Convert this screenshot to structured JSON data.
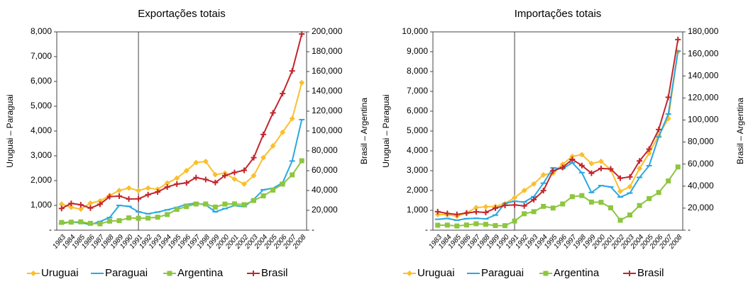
{
  "chart_data": [
    {
      "type": "line",
      "title": "Exportações totais",
      "y_label": "Uruguai – Paraguai",
      "y2_label": "Brasil – Argentina",
      "categories": [
        "1983",
        "1984",
        "1985",
        "1986",
        "1987",
        "1988",
        "1989",
        "1990",
        "1991",
        "1992",
        "1993",
        "1994",
        "1995",
        "1996",
        "1997",
        "1998",
        "1999",
        "2000",
        "2001",
        "2002",
        "2003",
        "2004",
        "2005",
        "2006",
        "2007",
        "2008"
      ],
      "vline_category": "1991",
      "ylim": [
        0,
        8000
      ],
      "yticks": [
        {
          "value": 0,
          "label": "-"
        },
        {
          "value": 1000,
          "label": "1,000"
        },
        {
          "value": 2000,
          "label": "2,000"
        },
        {
          "value": 3000,
          "label": "3,000"
        },
        {
          "value": 4000,
          "label": "4,000"
        },
        {
          "value": 5000,
          "label": "5,000"
        },
        {
          "value": 6000,
          "label": "6,000"
        },
        {
          "value": 7000,
          "label": "7,000"
        },
        {
          "value": 8000,
          "label": "8,000"
        }
      ],
      "y2lim": [
        0,
        200000
      ],
      "y2ticks": [
        {
          "value": 0,
          "label": "-"
        },
        {
          "value": 20000,
          "label": "20,000"
        },
        {
          "value": 40000,
          "label": "40,000"
        },
        {
          "value": 60000,
          "label": "60,000"
        },
        {
          "value": 80000,
          "label": "80,000"
        },
        {
          "value": 100000,
          "label": "100,000"
        },
        {
          "value": 120000,
          "label": "120,000"
        },
        {
          "value": 140000,
          "label": "140,000"
        },
        {
          "value": 160000,
          "label": "160,000"
        },
        {
          "value": 180000,
          "label": "180,000"
        },
        {
          "value": 200000,
          "label": "200,000"
        }
      ],
      "series": [
        {
          "name": "Uruguai",
          "color": "#fbbf2d",
          "marker": "diamond",
          "values": [
            1050,
            925,
            850,
            1090,
            1180,
            1400,
            1600,
            1700,
            1600,
            1700,
            1650,
            1900,
            2100,
            2400,
            2730,
            2770,
            2240,
            2300,
            2060,
            1860,
            2200,
            2930,
            3400,
            3950,
            4500,
            5950
          ]
        },
        {
          "name": "Paraguai",
          "color": "#2aa8e0",
          "marker": "dash",
          "values": [
            270,
            330,
            300,
            230,
            350,
            510,
            1000,
            960,
            740,
            660,
            730,
            820,
            920,
            1040,
            1090,
            1020,
            740,
            870,
            990,
            950,
            1240,
            1630,
            1690,
            1910,
            2790,
            4460
          ]
        },
        {
          "name": "Argentina",
          "color": "#8dc63f",
          "marker": "square",
          "axis": "y2",
          "values": [
            7800,
            8100,
            8400,
            6900,
            6400,
            9100,
            9600,
            12400,
            12000,
            12200,
            13100,
            15800,
            21000,
            23800,
            26400,
            26400,
            23300,
            26300,
            26500,
            25700,
            29900,
            34600,
            40400,
            46500,
            55800,
            70000
          ]
        },
        {
          "name": "Brasil",
          "color": "#c1272d",
          "marker": "plus",
          "axis": "y2",
          "values": [
            21900,
            27000,
            25600,
            22300,
            26200,
            33800,
            34400,
            31400,
            31600,
            35800,
            38600,
            43500,
            46500,
            47700,
            53000,
            51100,
            48000,
            55100,
            58200,
            60400,
            73100,
            96500,
            118300,
            137800,
            160600,
            197900
          ]
        }
      ]
    },
    {
      "type": "line",
      "title": "Importações totais",
      "y_label": "Uruguai   – Paraguai",
      "y2_label": "Brasil   – Argentina",
      "categories": [
        "1983",
        "1984",
        "1985",
        "1986",
        "1987",
        "1988",
        "1989",
        "1990",
        "1991",
        "1992",
        "1993",
        "1994",
        "1995",
        "1996",
        "1997",
        "1998",
        "1999",
        "2000",
        "2001",
        "2002",
        "2003",
        "2004",
        "2005",
        "2006",
        "2007",
        "2008"
      ],
      "vline_category": "1991",
      "ylim": [
        0,
        10000
      ],
      "yticks": [
        {
          "value": 0,
          "label": "-"
        },
        {
          "value": 1000,
          "label": "1,000"
        },
        {
          "value": 2000,
          "label": "2,000"
        },
        {
          "value": 3000,
          "label": "3,000"
        },
        {
          "value": 4000,
          "label": "4,000"
        },
        {
          "value": 5000,
          "label": "5,000"
        },
        {
          "value": 6000,
          "label": "6,000"
        },
        {
          "value": 7000,
          "label": "7,000"
        },
        {
          "value": 8000,
          "label": "8,000"
        },
        {
          "value": 9000,
          "label": "9,000"
        },
        {
          "value": 10000,
          "label": "10,000"
        }
      ],
      "y2lim": [
        0,
        180000
      ],
      "y2ticks": [
        {
          "value": 0,
          "label": "-"
        },
        {
          "value": 20000,
          "label": "20,000"
        },
        {
          "value": 40000,
          "label": "40,000"
        },
        {
          "value": 60000,
          "label": "60,000"
        },
        {
          "value": 80000,
          "label": "80,000"
        },
        {
          "value": 100000,
          "label": "100,000"
        },
        {
          "value": 120000,
          "label": "120,000"
        },
        {
          "value": 140000,
          "label": "140,000"
        },
        {
          "value": 160000,
          "label": "160,000"
        },
        {
          "value": 180000,
          "label": "180,000"
        }
      ],
      "series": [
        {
          "name": "Uruguai",
          "color": "#fbbf2d",
          "marker": "diamond",
          "values": [
            790,
            780,
            710,
            870,
            1140,
            1180,
            1200,
            1340,
            1640,
            2000,
            2330,
            2790,
            2870,
            3320,
            3720,
            3810,
            3360,
            3470,
            3060,
            1960,
            2190,
            3110,
            3880,
            4780,
            5630,
            9000
          ]
        },
        {
          "name": "Paraguai",
          "color": "#2aa8e0",
          "marker": "dash",
          "values": [
            550,
            590,
            500,
            580,
            600,
            570,
            760,
            1350,
            1460,
            1420,
            1690,
            2370,
            3140,
            3100,
            3400,
            2900,
            1900,
            2250,
            2180,
            1670,
            1870,
            2660,
            3250,
            4700,
            5860,
            9030
          ]
        },
        {
          "name": "Argentina",
          "color": "#8dc63f",
          "marker": "square",
          "axis": "y2",
          "values": [
            4500,
            4600,
            3800,
            4700,
            5800,
            5300,
            4200,
            4100,
            8300,
            14900,
            16800,
            21600,
            20100,
            23800,
            30400,
            31400,
            25500,
            25300,
            20300,
            9000,
            13800,
            22400,
            28700,
            34200,
            44700,
            57400
          ]
        },
        {
          "name": "Brasil",
          "color": "#c1272d",
          "marker": "plus",
          "axis": "y2",
          "values": [
            16800,
            15200,
            14300,
            15600,
            16600,
            16100,
            20000,
            22500,
            22900,
            22000,
            27700,
            35900,
            53800,
            56900,
            64300,
            58700,
            51700,
            56000,
            55600,
            47200,
            48300,
            62800,
            73600,
            91400,
            120600,
            173000
          ]
        }
      ]
    }
  ]
}
